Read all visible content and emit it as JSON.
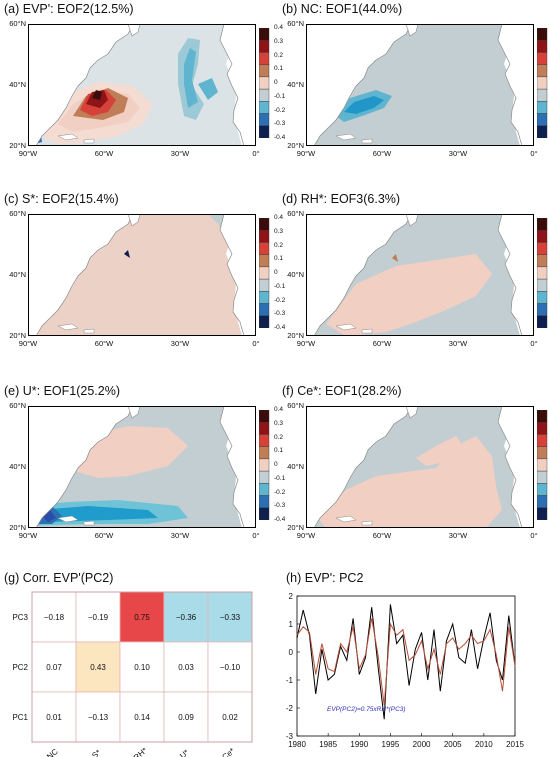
{
  "panels": [
    {
      "title": "(a) EVP': EOF2(12.5%)",
      "pattern": "a"
    },
    {
      "title": "(b) NC: EOF1(44.0%)",
      "pattern": "b"
    },
    {
      "title": "(c) S*: EOF2(15.4%)",
      "pattern": "c"
    },
    {
      "title": "(d) RH*: EOF3(6.3%)",
      "pattern": "d"
    },
    {
      "title": "(e) U*: EOF1(25.2%)",
      "pattern": "e"
    },
    {
      "title": "(f) Ce*: EOF1(28.2%)",
      "pattern": "f"
    }
  ],
  "map_axes": {
    "lat_labels": [
      "60°N",
      "40°N",
      "20°N"
    ],
    "lon_labels": [
      "90°W",
      "60°W",
      "30°W",
      "0°"
    ]
  },
  "colorbar": {
    "ticks": [
      "0.4",
      "0.3",
      "0.2",
      "0.1",
      "0",
      "-0.1",
      "-0.2",
      "-0.3",
      "-0.4"
    ],
    "colors": [
      "#3b0d0a",
      "#8e1418",
      "#d6413a",
      "#bf7d58",
      "#f1cfc3",
      "#c3ced3",
      "#5fb5cf",
      "#2e6fb4",
      "#0f1f50"
    ]
  },
  "chart_data": [
    {
      "type": "heatmap",
      "title": "(g) Corr. EVP'(PC2)",
      "rows": [
        "PC3",
        "PC2",
        "PC1"
      ],
      "columns": [
        "NC",
        "S*",
        "RH*",
        "U*",
        "Ce*"
      ],
      "values": [
        [
          "−0.18",
          "−0.19",
          "0.75",
          "−0.36",
          "−0.33"
        ],
        [
          "0.07",
          "0.43",
          "0.10",
          "0.03",
          "−0.10"
        ],
        [
          "0.01",
          "−0.13",
          "0.14",
          "0.09",
          "0.02"
        ]
      ],
      "highlight_colors": {
        "0.75": "#e8474a",
        "−0.36": "#a9dce8",
        "−0.33": "#a9dce8",
        "0.43": "#fbe6c0"
      }
    },
    {
      "type": "line",
      "title": "(h) EVP': PC2",
      "x_ticks": [
        "1980",
        "1985",
        "1990",
        "1995",
        "2000",
        "2005",
        "2010",
        "2015"
      ],
      "y_ticks": [
        "2",
        "1",
        "0",
        "-1",
        "-2",
        "-3"
      ],
      "xlim": [
        1980,
        2015
      ],
      "ylim": [
        -3,
        2
      ],
      "legend_note": "EVP(PC2)=0.75xRH*(PC3)",
      "series": [
        {
          "color": "#000000",
          "x": [
            1980,
            1981,
            1982,
            1983,
            1984,
            1985,
            1986,
            1987,
            1988,
            1989,
            1990,
            1991,
            1992,
            1993,
            1994,
            1995,
            1996,
            1997,
            1998,
            1999,
            2000,
            2001,
            2002,
            2003,
            2004,
            2005,
            2006,
            2007,
            2008,
            2009,
            2010,
            2011,
            2012,
            2013,
            2014,
            2015
          ],
          "values": [
            0.5,
            1.5,
            0.6,
            -1.5,
            0.1,
            -1.0,
            -0.8,
            0.2,
            -0.3,
            1.2,
            -0.8,
            -0.2,
            1.6,
            -0.5,
            -2.4,
            1.7,
            0.3,
            0.6,
            -1.2,
            0.1,
            0.7,
            -1.0,
            0.8,
            -1.4,
            0.4,
            1.0,
            -0.2,
            -0.4,
            0.8,
            -0.6,
            0.5,
            1.4,
            -0.3,
            -1.0,
            1.3,
            -0.5
          ]
        },
        {
          "color": "#b5503a",
          "x": [
            1980,
            1981,
            1982,
            1983,
            1984,
            1985,
            1986,
            1987,
            1988,
            1989,
            1990,
            1991,
            1992,
            1993,
            1994,
            1995,
            1996,
            1997,
            1998,
            1999,
            2000,
            2001,
            2002,
            2003,
            2004,
            2005,
            2006,
            2007,
            2008,
            2009,
            2010,
            2011,
            2012,
            2013,
            2014,
            2015
          ],
          "values": [
            0.6,
            0.9,
            0.7,
            -0.8,
            0.3,
            -0.6,
            -0.7,
            0.3,
            0.0,
            0.9,
            -0.6,
            -0.1,
            1.2,
            -0.1,
            -1.9,
            1.0,
            0.6,
            0.8,
            -0.3,
            -0.1,
            0.4,
            -0.6,
            0.1,
            -0.8,
            0.3,
            0.5,
            0.1,
            0.3,
            0.6,
            0.3,
            0.4,
            0.8,
            -0.1,
            -1.4,
            0.9,
            -0.5
          ]
        }
      ]
    }
  ]
}
